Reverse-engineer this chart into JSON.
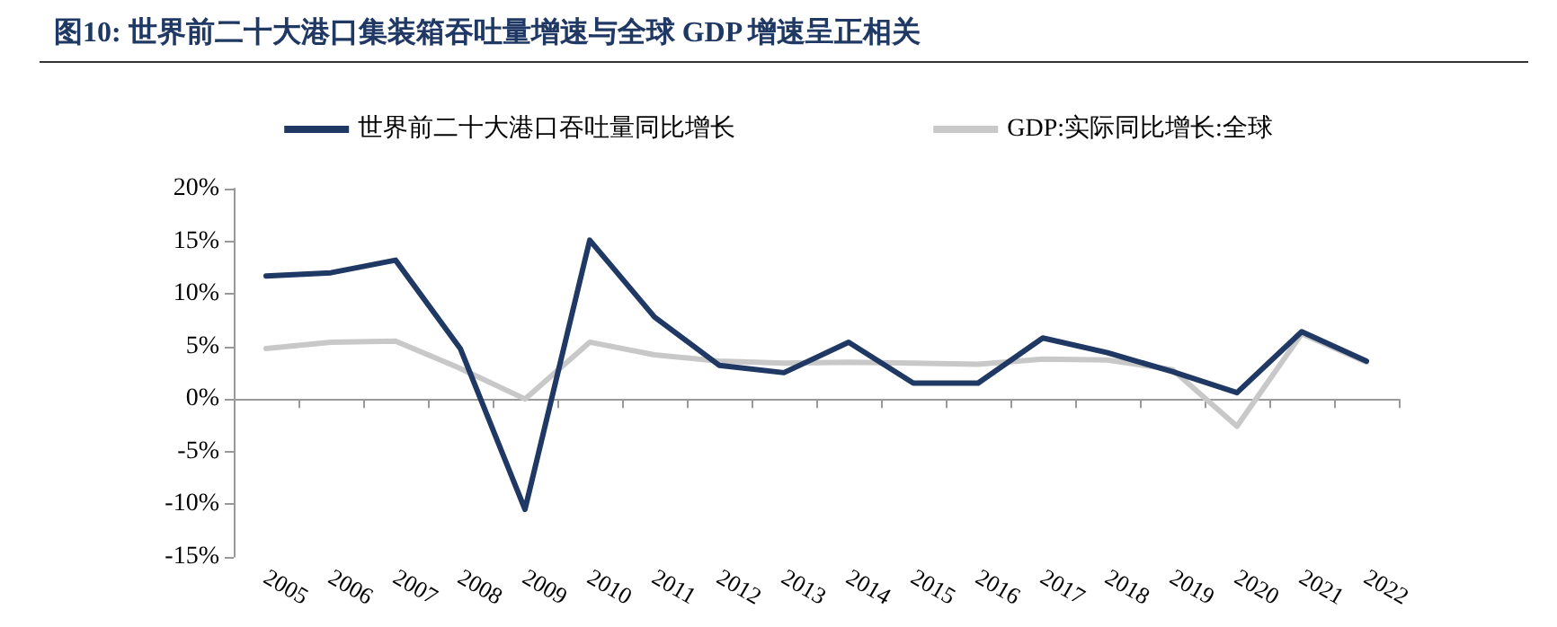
{
  "chart_data": {
    "type": "line",
    "title": "图10:  世界前二十大港口集装箱吞吐量增速与全球 GDP 增速呈正相关",
    "categories": [
      "2005",
      "2006",
      "2007",
      "2008",
      "2009",
      "2010",
      "2011",
      "2012",
      "2013",
      "2014",
      "2015",
      "2016",
      "2017",
      "2018",
      "2019",
      "2020",
      "2021",
      "2022"
    ],
    "series": [
      {
        "name": "世界前二十大港口吞吐量同比增长",
        "color": "#1f3864",
        "values": [
          11.7,
          12.0,
          13.2,
          4.8,
          -10.5,
          15.1,
          7.8,
          3.2,
          2.5,
          5.4,
          1.5,
          1.5,
          5.8,
          4.4,
          2.6,
          0.6,
          6.4,
          3.6
        ]
      },
      {
        "name": "GDP:实际同比增长:全球",
        "color": "#c8c8c8",
        "values": [
          4.8,
          5.4,
          5.5,
          2.9,
          0.0,
          5.4,
          4.2,
          3.6,
          3.4,
          3.5,
          3.4,
          3.3,
          3.8,
          3.7,
          2.8,
          -2.6,
          6.2,
          3.5
        ]
      }
    ],
    "ylim": [
      -15,
      20
    ],
    "yticks": [
      {
        "value": -15,
        "label": "-15%"
      },
      {
        "value": -10,
        "label": "-10%"
      },
      {
        "value": -5,
        "label": "-5%"
      },
      {
        "value": 0,
        "label": "0%"
      },
      {
        "value": 5,
        "label": "5%"
      },
      {
        "value": 10,
        "label": "10%"
      },
      {
        "value": 15,
        "label": "15%"
      },
      {
        "value": 20,
        "label": "20%"
      }
    ],
    "legend": "top",
    "marker": "none",
    "line_style": "solid"
  }
}
